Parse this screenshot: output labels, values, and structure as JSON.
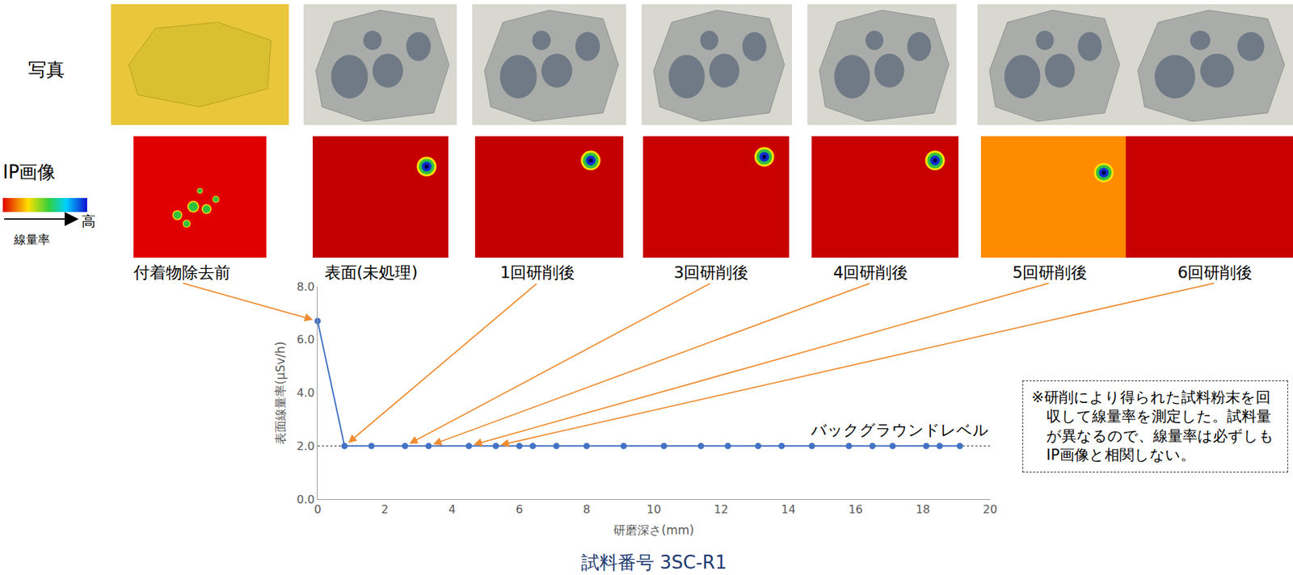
{
  "chart_data": {
    "type": "line",
    "title": "試料番号 3SC-R1",
    "x_label": "研磨深さ(mm)",
    "y_label": "表面線量率(μSv/h)",
    "x": [
      0,
      0.8,
      1.6,
      2.6,
      3.3,
      4.5,
      5.3,
      6.0,
      6.4,
      7.1,
      8.0,
      9.1,
      10.3,
      11.4,
      12.2,
      13.1,
      13.8,
      14.7,
      15.8,
      16.5,
      17.1,
      18.1,
      18.5,
      19.1
    ],
    "values": [
      6.7,
      2.0,
      2.0,
      2.0,
      2.0,
      2.0,
      2.0,
      2.0,
      2.0,
      2.0,
      2.0,
      2.0,
      2.0,
      2.0,
      2.0,
      2.0,
      2.0,
      2.0,
      2.0,
      2.0,
      2.0,
      2.0,
      2.0,
      2.0
    ],
    "color": "#4472c4",
    "marker": "circle",
    "xlim": [
      0,
      20
    ],
    "xticks": [
      0,
      2,
      4,
      6,
      8,
      10,
      12,
      14,
      16,
      18,
      20
    ],
    "ylim": [
      0,
      8
    ],
    "yticks": [
      {
        "value": 0,
        "label": "0.0"
      },
      {
        "value": 2,
        "label": "2.0"
      },
      {
        "value": 4,
        "label": "4.0"
      },
      {
        "value": 6,
        "label": "6.0"
      },
      {
        "value": 8,
        "label": "8.0"
      }
    ],
    "grid": false,
    "annotations": [
      {
        "text": "バックグラウンドレベル",
        "y": 2.0,
        "line_style": "dotted"
      }
    ]
  },
  "figure": {
    "row_labels": [
      "写真",
      "IP画像"
    ],
    "color_scale": {
      "label": "線量率",
      "high": "高"
    },
    "panels": [
      {
        "label": "付着物除去前",
        "x": 0
      },
      {
        "label": "表面(未処理)"
      },
      {
        "label": "1回研削後",
        "x": 0.8
      },
      {
        "label": "3回研削後",
        "x": 2.6
      },
      {
        "label": "4回研削後",
        "x": 3.3
      },
      {
        "label": "5回研削後",
        "x": 4.5
      },
      {
        "label": "6回研削後",
        "x": 5.3
      }
    ],
    "note": "※研削により得られた試料粉末を回収して線量率を測定した。試料量が異なるので、線量率は必ずしもIP画像と相関しない。"
  }
}
